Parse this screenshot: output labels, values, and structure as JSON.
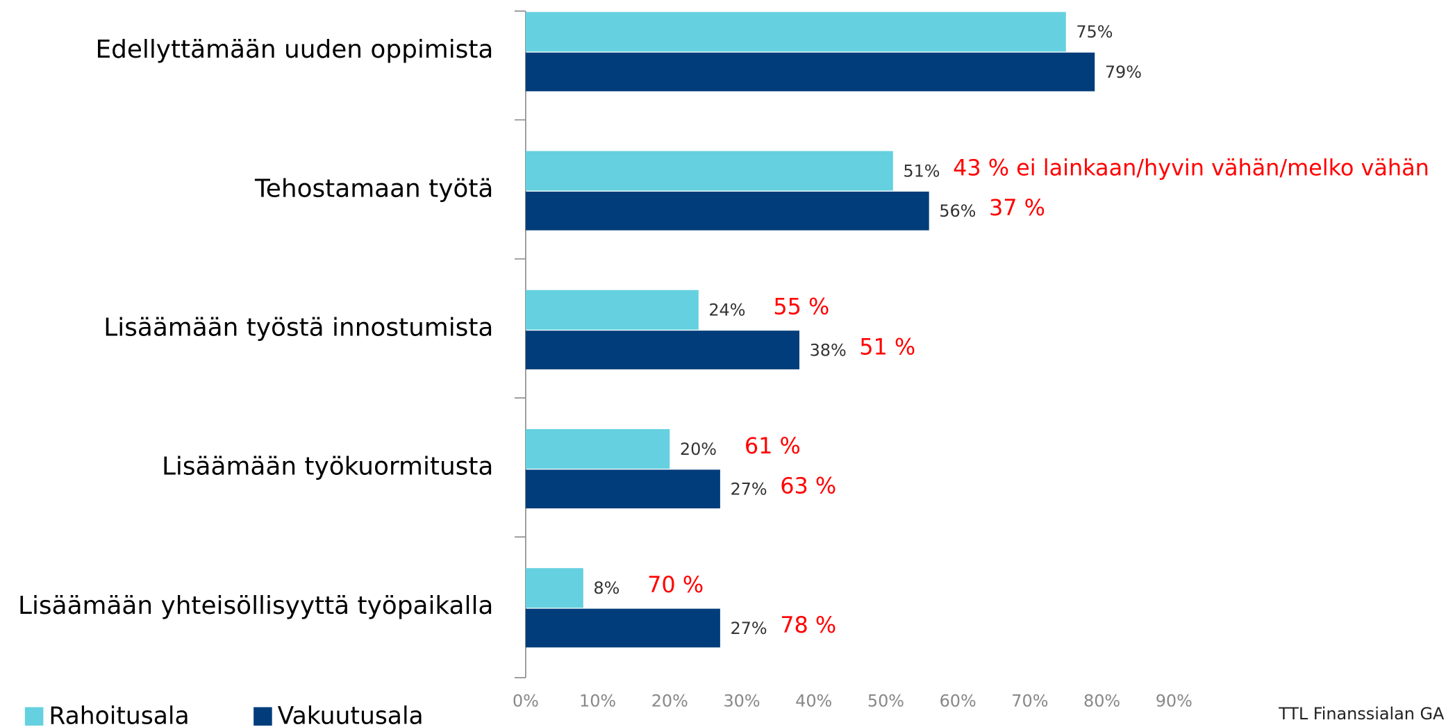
{
  "chart_data": {
    "type": "bar",
    "orientation": "horizontal",
    "categories": [
      "Edellyttämään uuden oppimista",
      "Tehostamaan työtä",
      "Lisäämään työstä innostumista",
      "Lisäämään työkuormitusta",
      "Lisäämään yhteisöllisyyttä työpaikalla"
    ],
    "series": [
      {
        "name": "Rahoitusala",
        "color": "#65d0df",
        "values": [
          75,
          51,
          24,
          20,
          8
        ],
        "value_labels": [
          "75%",
          "51%",
          "24%",
          "20%",
          "8%"
        ],
        "annotations": [
          null,
          "43 % ei lainkaan/hyvin vähän/melko vähän",
          "55 %",
          "61 %",
          "70 %"
        ]
      },
      {
        "name": "Vakuutusala",
        "color": "#003d7a",
        "values": [
          79,
          56,
          38,
          27,
          27
        ],
        "value_labels": [
          "79%",
          "56%",
          "38%",
          "27%",
          "27%"
        ],
        "annotations": [
          null,
          "37 %",
          "51 %",
          "63 %",
          "78 %"
        ]
      }
    ],
    "xlim": [
      0,
      90
    ],
    "xticks": [
      {
        "value": 0,
        "label": "0%"
      },
      {
        "value": 10,
        "label": "10%"
      },
      {
        "value": 20,
        "label": "20%"
      },
      {
        "value": 30,
        "label": "30%"
      },
      {
        "value": 40,
        "label": "40%"
      },
      {
        "value": 50,
        "label": "50%"
      },
      {
        "value": 60,
        "label": "60%"
      },
      {
        "value": 70,
        "label": "70%"
      },
      {
        "value": 80,
        "label": "80%"
      },
      {
        "value": 90,
        "label": "90%"
      }
    ],
    "annotation_color": "#ff0000",
    "source": "TTL Finanssialan GA"
  }
}
